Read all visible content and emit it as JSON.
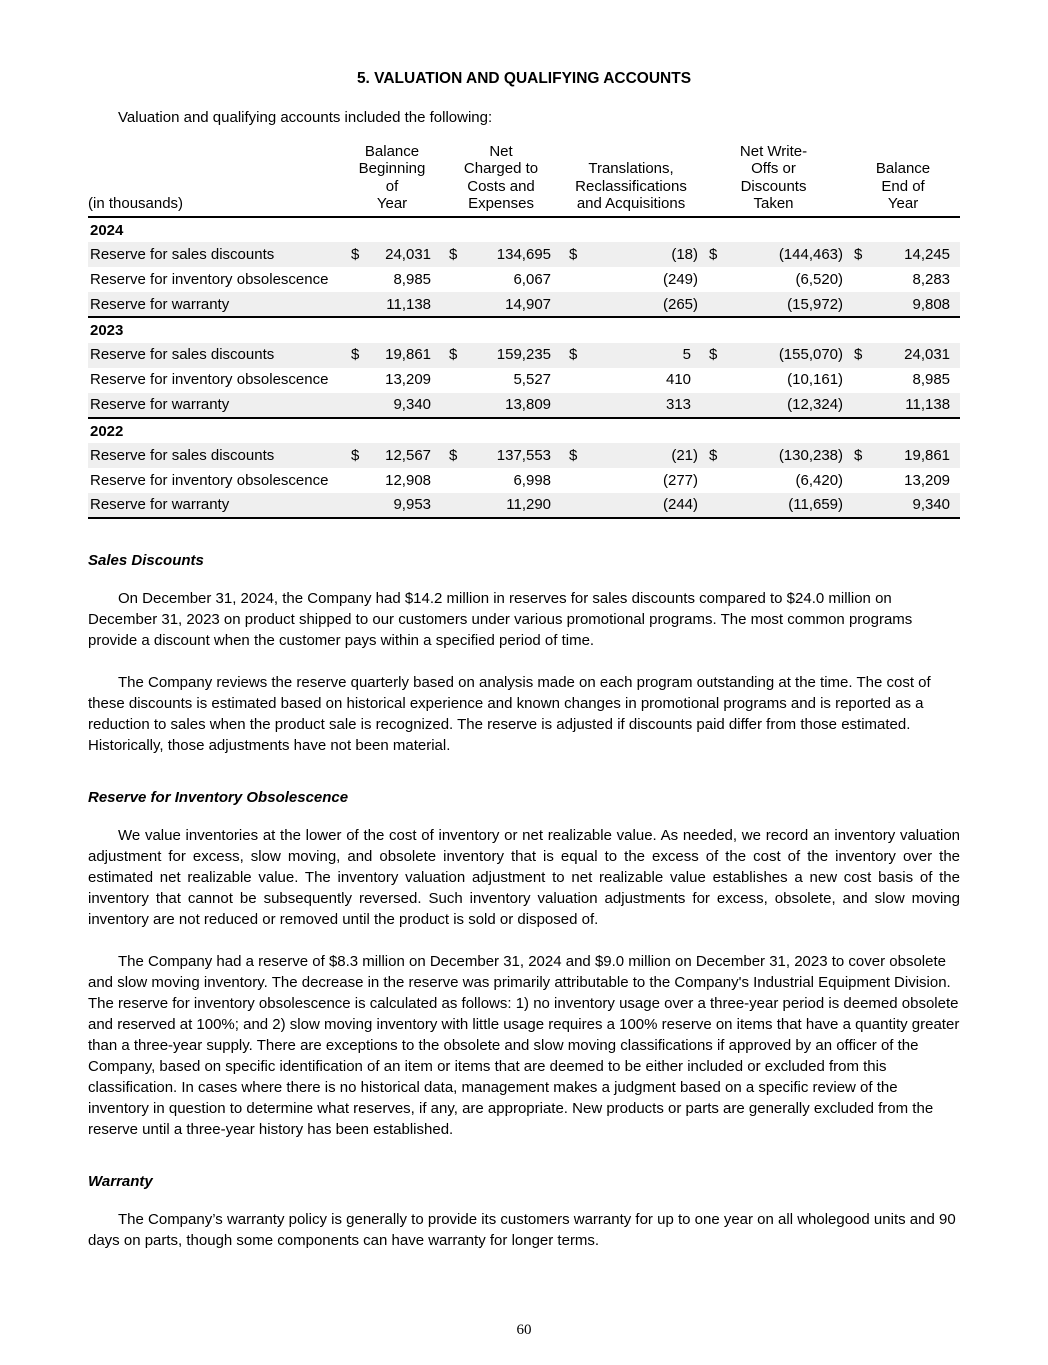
{
  "page": {
    "title": "5. VALUATION AND QUALIFYING ACCOUNTS",
    "intro": "Valuation and qualifying accounts included the following:",
    "page_number": "60"
  },
  "table": {
    "label_header": "(in thousands)",
    "currency_symbol": "$",
    "columns": [
      "Balance\nBeginning\nof\nYear",
      "Net\nCharged to\nCosts and\nExpenses",
      "Translations,\nReclassifications\nand Acquisitions",
      "Net Write-\nOffs or\nDiscounts\nTaken",
      "Balance\nEnd of\nYear"
    ],
    "groups": [
      {
        "year": "2024",
        "rows": [
          {
            "label": "Reserve for sales discounts",
            "dollar": true,
            "values": [
              "24,031",
              "134,695",
              "(18)",
              "(144,463)",
              "14,245"
            ]
          },
          {
            "label": "Reserve for inventory obsolescence",
            "dollar": false,
            "values": [
              "8,985",
              "6,067",
              "(249)",
              "(6,520)",
              "8,283"
            ]
          },
          {
            "label": "Reserve for warranty",
            "dollar": false,
            "values": [
              "11,138",
              "14,907",
              "(265)",
              "(15,972)",
              "9,808"
            ]
          }
        ]
      },
      {
        "year": "2023",
        "rows": [
          {
            "label": "Reserve for sales discounts",
            "dollar": true,
            "values": [
              "19,861",
              "159,235",
              "5",
              "(155,070)",
              "24,031"
            ]
          },
          {
            "label": "Reserve for inventory obsolescence",
            "dollar": false,
            "values": [
              "13,209",
              "5,527",
              "410",
              "(10,161)",
              "8,985"
            ]
          },
          {
            "label": "Reserve for warranty",
            "dollar": false,
            "values": [
              "9,340",
              "13,809",
              "313",
              "(12,324)",
              "11,138"
            ]
          }
        ]
      },
      {
        "year": "2022",
        "rows": [
          {
            "label": "Reserve for sales discounts",
            "dollar": true,
            "values": [
              "12,567",
              "137,553",
              "(21)",
              "(130,238)",
              "19,861"
            ]
          },
          {
            "label": "Reserve for inventory obsolescence",
            "dollar": false,
            "values": [
              "12,908",
              "6,998",
              "(277)",
              "(6,420)",
              "13,209"
            ]
          },
          {
            "label": "Reserve for warranty",
            "dollar": false,
            "values": [
              "9,953",
              "11,290",
              "(244)",
              "(11,659)",
              "9,340"
            ]
          }
        ]
      }
    ]
  },
  "sections": [
    {
      "heading": "Sales Discounts",
      "paragraphs": [
        {
          "text": "On December 31, 2024, the Company had $14.2 million in reserves for sales discounts compared to $24.0 million on December 31, 2023 on product shipped to our customers under various promotional programs. The most common programs provide a discount when the customer pays within a specified period of time."
        },
        {
          "text": "The Company reviews the reserve quarterly based on analysis made on each program outstanding at the time. The cost of these discounts is estimated based on historical experience and known changes in promotional programs and is reported as a reduction to sales when the product sale is recognized. The reserve is adjusted if discounts paid differ from those estimated. Historically, those adjustments have not been material."
        }
      ]
    },
    {
      "heading": "Reserve for Inventory Obsolescence",
      "paragraphs": [
        {
          "text": "We value inventories at the lower of the cost of inventory or net realizable value. As needed, we record an inventory valuation adjustment for excess, slow moving, and obsolete inventory that is equal to the excess of the cost of the inventory over the estimated net realizable value. The inventory valuation adjustment to net realizable value establishes a new cost basis of the inventory that cannot be subsequently reversed. Such inventory valuation adjustments for excess, obsolete, and slow moving inventory are not reduced or removed until the product is sold or disposed of.",
          "justify": true
        },
        {
          "text": "The Company had a reserve of $8.3 million on December 31, 2024 and $9.0 million on December 31, 2023 to cover obsolete and slow moving inventory. The decrease in the reserve was primarily attributable to the Company's Industrial Equipment Division. The reserve for inventory obsolescence  is calculated as follows: 1) no inventory usage over a three-year period is deemed obsolete and reserved at 100%; and 2) slow moving inventory with little usage requires a 100% reserve on items that have a quantity greater than a three-year supply. There are exceptions to the obsolete and slow moving classifications if approved by an officer of the Company, based on specific identification of an item or items that are deemed to be either included or excluded from this classification. In cases where there is no historical data, management makes a judgment based on a specific review of the inventory in question to determine what reserves, if any, are appropriate. New products or parts are generally excluded from the reserve until a three-year history has been established."
        }
      ]
    },
    {
      "heading": "Warranty",
      "paragraphs": [
        {
          "text": "The Company’s warranty policy is generally to provide its customers warranty for up to one year on all wholegood units and 90 days on parts, though some components can have warranty for longer terms."
        }
      ]
    }
  ]
}
